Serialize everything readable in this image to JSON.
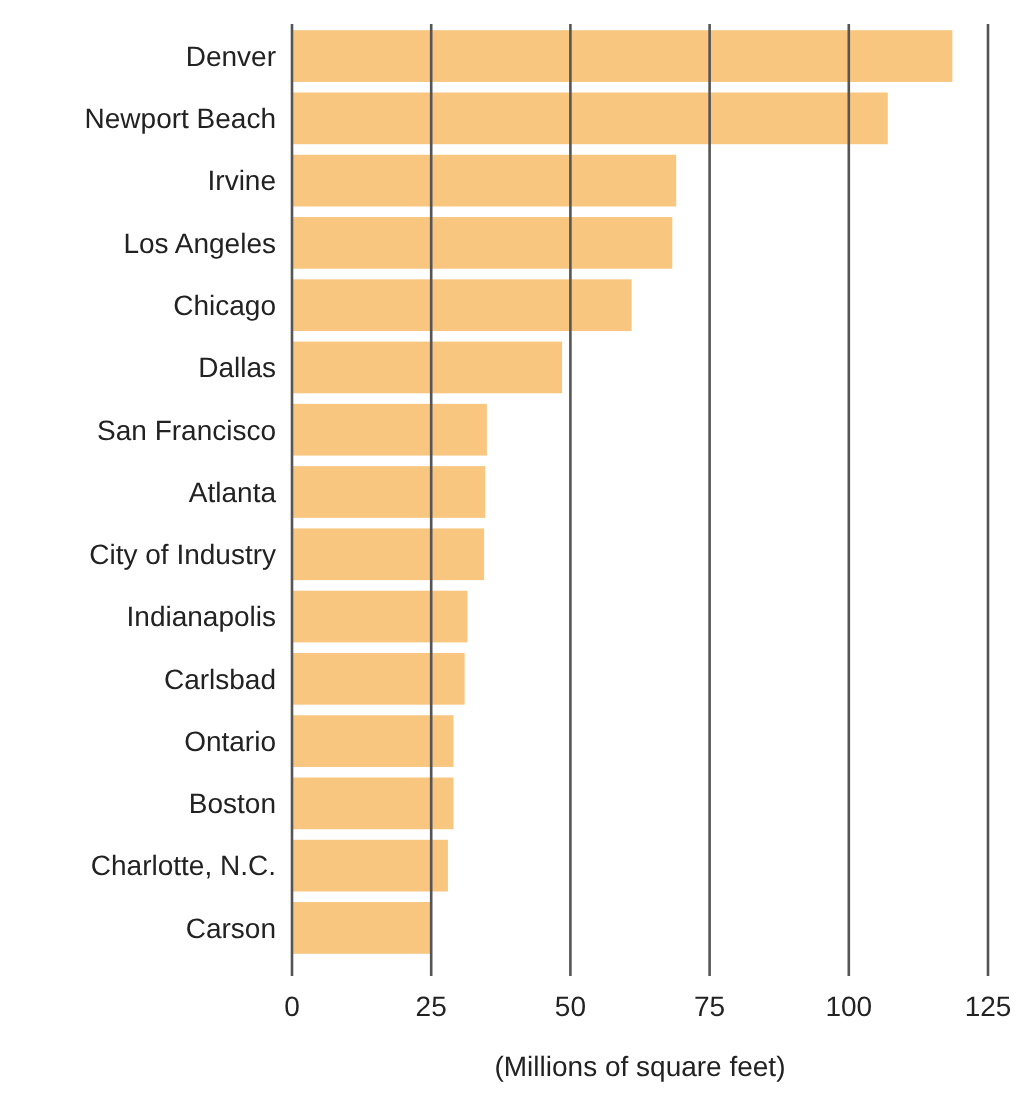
{
  "chart_data": {
    "type": "bar",
    "orientation": "horizontal",
    "xlabel": "(Millions of square feet)",
    "categories": [
      "Denver",
      "Newport Beach",
      "Irvine",
      "Los Angeles",
      "Chicago",
      "Dallas",
      "San Francisco",
      "Atlanta",
      "City of Industry",
      "Indianapolis",
      "Carlsbad",
      "Ontario",
      "Boston",
      "Charlotte, N.C.",
      "Carson"
    ],
    "values": [
      118.6,
      107,
      69,
      68.3,
      61,
      48.5,
      35,
      34.7,
      34.5,
      31.5,
      31,
      29,
      29,
      28,
      25
    ],
    "color": "#f8c67f",
    "xlim": [
      0,
      125
    ],
    "xticks": [
      0,
      25,
      50,
      75,
      100,
      125
    ],
    "grid": "x"
  }
}
